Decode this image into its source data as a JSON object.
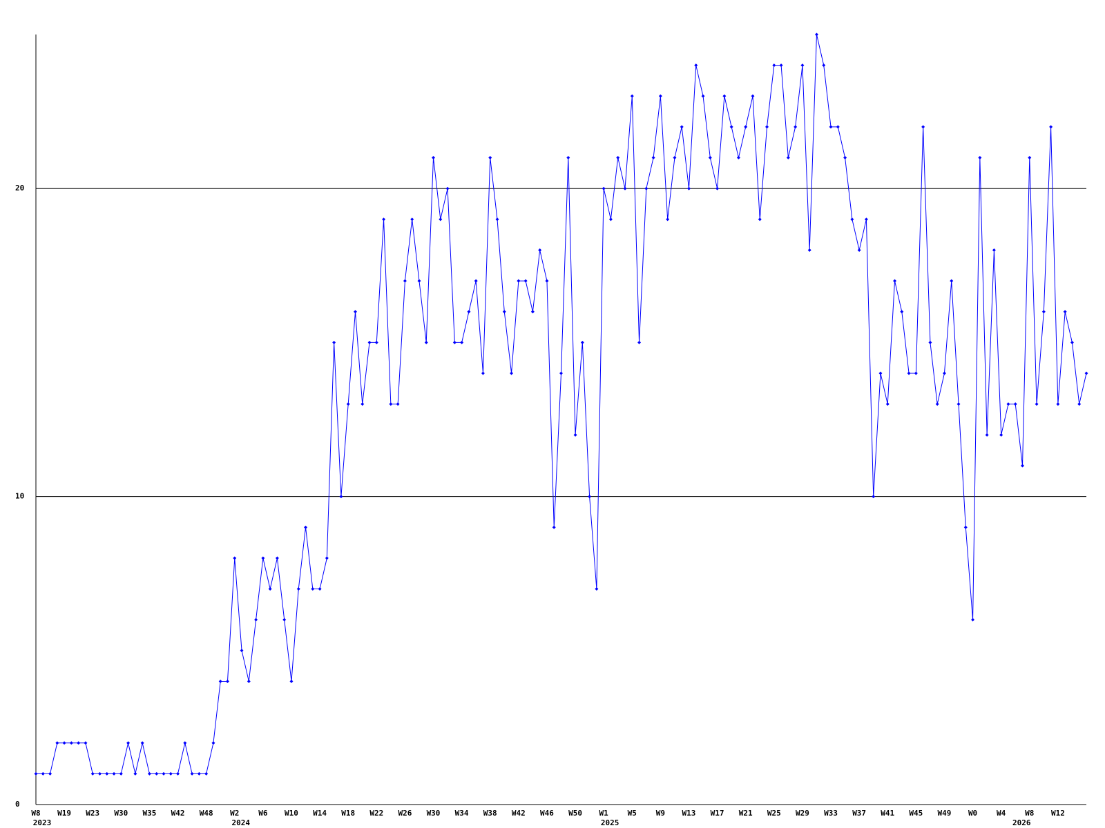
{
  "chart_data": {
    "type": "line",
    "categories": [
      "W8",
      null,
      null,
      null,
      "W19",
      null,
      null,
      null,
      "W23",
      null,
      null,
      null,
      "W30",
      null,
      null,
      null,
      "W35",
      null,
      null,
      null,
      "W42",
      null,
      null,
      null,
      "W48",
      null,
      null,
      null,
      "W2",
      null,
      null,
      null,
      "W6",
      null,
      null,
      null,
      "W10",
      null,
      null,
      null,
      "W14",
      null,
      null,
      null,
      "W18",
      null,
      null,
      null,
      "W22",
      null,
      null,
      null,
      "W26",
      null,
      null,
      null,
      "W30",
      null,
      null,
      null,
      "W34",
      null,
      null,
      null,
      "W38",
      null,
      null,
      null,
      "W42",
      null,
      null,
      null,
      "W46",
      null,
      null,
      null,
      "W50",
      null,
      null,
      null,
      "W1",
      null,
      null,
      null,
      "W5",
      null,
      null,
      null,
      "W9",
      null,
      null,
      null,
      "W13",
      null,
      null,
      null,
      "W17",
      null,
      null,
      null,
      "W21",
      null,
      null,
      null,
      "W25",
      null,
      null,
      null,
      "W29",
      null,
      null,
      null,
      "W33",
      null,
      null,
      null,
      "W37",
      null,
      null,
      null,
      "W41",
      null,
      null,
      null,
      "W45",
      null,
      null,
      null,
      "W49",
      null,
      null,
      null,
      "W0",
      null,
      null,
      null,
      "W4",
      null,
      null,
      null,
      "W8",
      null,
      null,
      null,
      "W12",
      null,
      null,
      null,
      null
    ],
    "years": [
      "2023",
      null,
      null,
      null,
      null,
      null,
      null,
      null,
      null,
      null,
      null,
      null,
      null,
      null,
      null,
      null,
      null,
      null,
      null,
      null,
      null,
      null,
      null,
      null,
      null,
      null,
      null,
      null,
      "2024",
      null,
      null,
      null,
      null,
      null,
      null,
      null,
      null,
      null,
      null,
      null,
      null,
      null,
      null,
      null,
      null,
      null,
      null,
      null,
      null,
      null,
      null,
      null,
      null,
      null,
      null,
      null,
      null,
      null,
      null,
      null,
      null,
      null,
      null,
      null,
      null,
      null,
      null,
      null,
      null,
      null,
      null,
      null,
      null,
      null,
      null,
      null,
      null,
      null,
      null,
      null,
      "2025",
      null,
      null,
      null,
      null,
      null,
      null,
      null,
      null,
      null,
      null,
      null,
      null,
      null,
      null,
      null,
      null,
      null,
      null,
      null,
      null,
      null,
      null,
      null,
      null,
      null,
      null,
      null,
      null,
      null,
      null,
      null,
      null,
      null,
      null,
      null,
      null,
      null,
      null,
      null,
      null,
      null,
      null,
      null,
      null,
      null,
      null,
      null,
      null,
      null,
      null,
      null,
      null,
      null,
      null,
      null,
      null,
      null,
      "2026",
      null,
      null,
      null,
      null,
      null,
      null,
      null,
      null,
      null,
      null,
      null,
      null,
      null,
      null,
      null,
      null
    ],
    "values": [
      1,
      1,
      1,
      2,
      2,
      2,
      2,
      2,
      1,
      1,
      1,
      1,
      1,
      2,
      1,
      2,
      1,
      1,
      1,
      1,
      1,
      2,
      1,
      1,
      1,
      2,
      4,
      4,
      8,
      5,
      4,
      6,
      8,
      7,
      8,
      6,
      4,
      7,
      9,
      7,
      7,
      8,
      15,
      10,
      13,
      16,
      13,
      15,
      15,
      19,
      13,
      13,
      17,
      19,
      17,
      15,
      21,
      19,
      20,
      15,
      15,
      16,
      17,
      14,
      21,
      19,
      16,
      14,
      17,
      17,
      16,
      18,
      17,
      9,
      14,
      21,
      12,
      15,
      10,
      7,
      20,
      19,
      21,
      20,
      23,
      15,
      20,
      21,
      23,
      19,
      21,
      22,
      20,
      24,
      23,
      21,
      20,
      23,
      22,
      21,
      22,
      23,
      19,
      22,
      24,
      24,
      21,
      22,
      24,
      18,
      25,
      24,
      22,
      22,
      21,
      19,
      18,
      19,
      10,
      14,
      13,
      17,
      16,
      14,
      14,
      22,
      15,
      13,
      14,
      17,
      13,
      9,
      6,
      21,
      12,
      18,
      12,
      13,
      13,
      11,
      21,
      13,
      16,
      22,
      13,
      16,
      15,
      13,
      14
    ],
    "color": "#0000ff",
    "ylim": [
      0,
      25
    ],
    "yticks": [
      0,
      10,
      20
    ],
    "grid": true
  }
}
